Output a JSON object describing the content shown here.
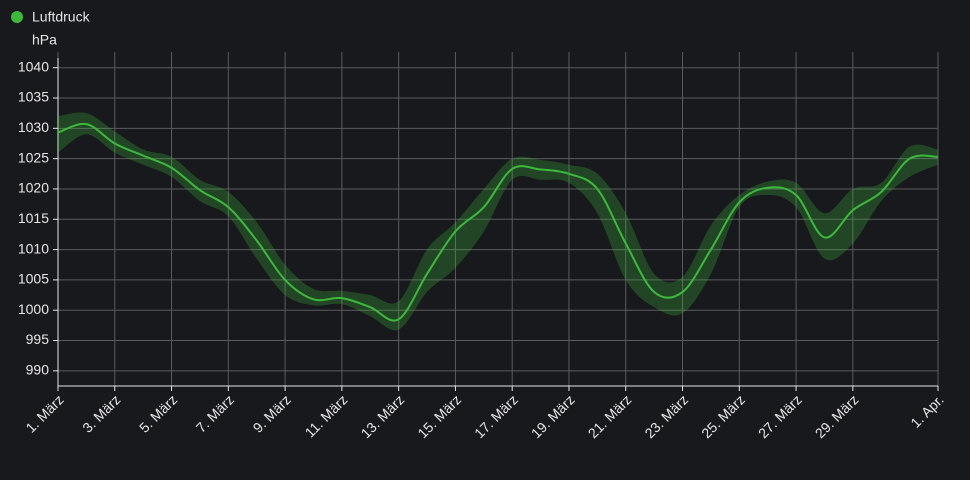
{
  "chart_data": {
    "type": "line",
    "y_label": "hPa",
    "categories": [
      "1. März",
      null,
      "3. März",
      null,
      "5. März",
      null,
      "7. März",
      null,
      "9. März",
      null,
      "11. März",
      null,
      "13. März",
      null,
      "15. März",
      null,
      "17. März",
      null,
      "19. März",
      null,
      "21. März",
      null,
      "23. März",
      null,
      "25. März",
      null,
      "27. März",
      null,
      "29. März",
      null,
      null,
      "1. Apr."
    ],
    "series": [
      {
        "name": "Luftdruck",
        "color": "#3cb93c",
        "values": [
          1029.3,
          1030.7,
          1027.5,
          1025.5,
          1023.5,
          1019.8,
          1017.0,
          1011.5,
          1005.0,
          1001.8,
          1002.0,
          1000.5,
          998.5,
          1006.0,
          1013.0,
          1017.0,
          1023.3,
          1023.2,
          1022.5,
          1020.0,
          1011.0,
          1003.0,
          1003.0,
          1010.0,
          1017.8,
          1020.2,
          1019.0,
          1012.0,
          1016.5,
          1019.5,
          1025.0,
          1025.3
        ],
        "band_high": [
          1032.0,
          1032.5,
          1029.5,
          1026.5,
          1025.3,
          1021.5,
          1019.5,
          1014.5,
          1007.5,
          1003.5,
          1003.2,
          1002.5,
          1001.5,
          1010.0,
          1014.5,
          1020.0,
          1025.0,
          1024.8,
          1024.0,
          1022.5,
          1016.0,
          1006.0,
          1005.5,
          1014.0,
          1019.0,
          1021.2,
          1021.0,
          1016.0,
          1020.0,
          1021.0,
          1027.0,
          1026.5
        ],
        "band_low": [
          1026.0,
          1029.0,
          1026.0,
          1024.0,
          1022.0,
          1018.0,
          1015.5,
          1008.5,
          1002.5,
          1000.8,
          1001.0,
          999.0,
          996.8,
          1003.0,
          1007.0,
          1013.0,
          1021.5,
          1021.5,
          1021.0,
          1016.0,
          1005.0,
          1000.5,
          999.5,
          1006.0,
          1017.0,
          1019.0,
          1017.0,
          1008.5,
          1011.0,
          1018.0,
          1022.0,
          1024.0
        ]
      }
    ],
    "ylim": [
      987.5,
      1041.6
    ],
    "yticks": [
      990,
      995,
      1000,
      1005,
      1010,
      1015,
      1020,
      1025,
      1030,
      1035,
      1040
    ],
    "grid": true
  }
}
